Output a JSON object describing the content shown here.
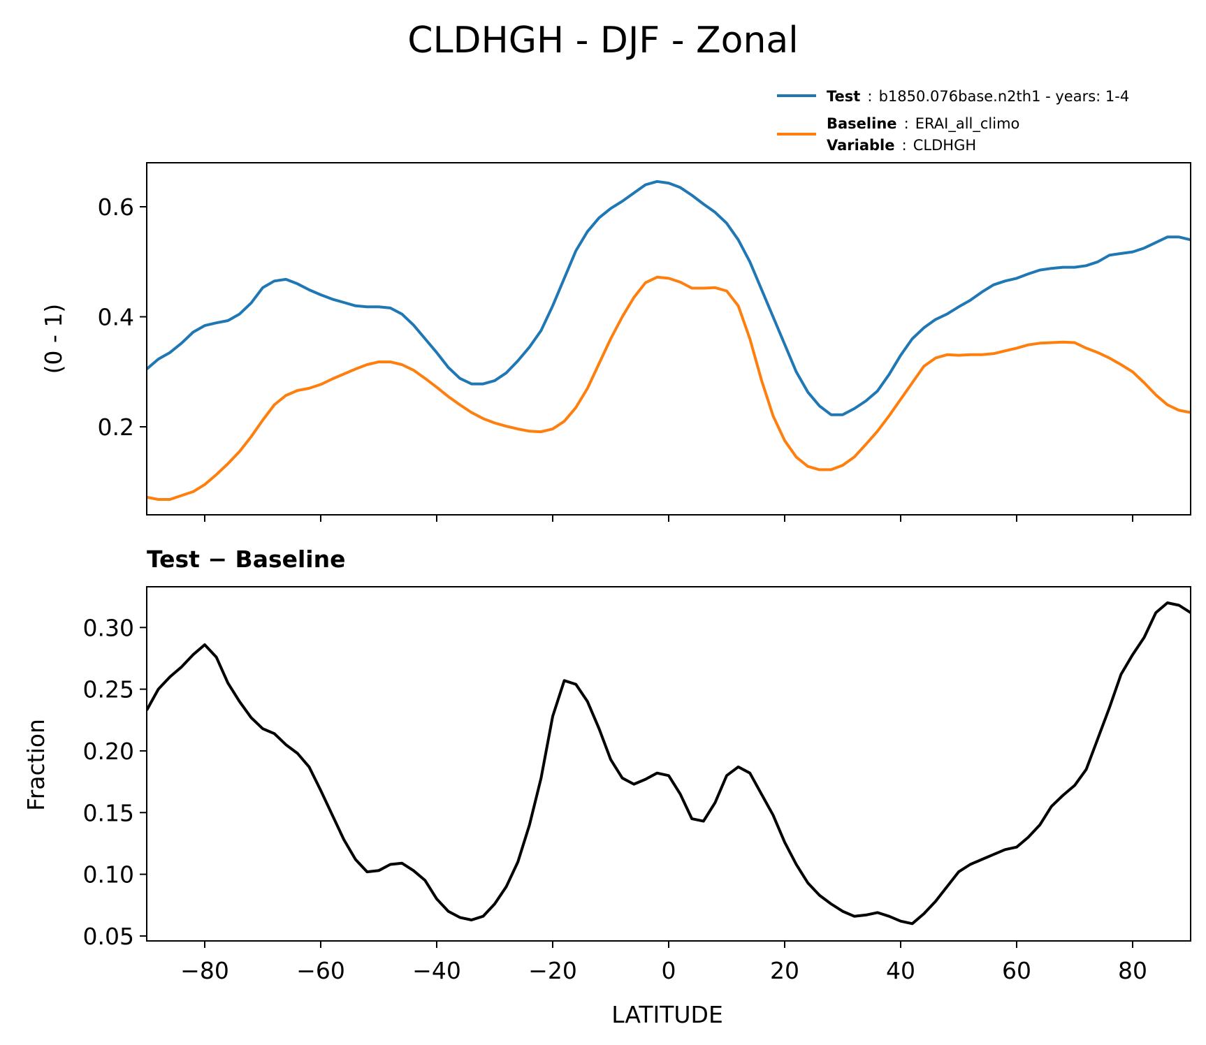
{
  "title": "CLDHGH - DJF - Zonal",
  "legend": [
    {
      "key": "Test",
      "sep": ":",
      "value": "b1850.076base.n2th1 - years: 1-4",
      "color": "#1f77b4"
    },
    {
      "key": "Baseline",
      "sep": ":",
      "value": "ERAI_all_climo",
      "color": "#ff7f0e"
    },
    {
      "key": "Variable",
      "sep": ":",
      "value": "CLDHGH"
    }
  ],
  "top_panel": {
    "ylabel": "(0 - 1)",
    "xlim": [
      -90,
      90
    ],
    "ylim": [
      0.04,
      0.68
    ],
    "yticks": [
      0.2,
      0.4,
      0.6
    ],
    "ytick_labels": [
      "0.2",
      "0.4",
      "0.6"
    ],
    "xticks": [
      -80,
      -60,
      -40,
      -20,
      0,
      20,
      40,
      60,
      80
    ]
  },
  "bottom_panel": {
    "title": "Test − Baseline",
    "ylabel": "Fraction",
    "xlabel": "LATITUDE",
    "xlim": [
      -90,
      90
    ],
    "ylim": [
      0.046,
      0.333
    ],
    "yticks": [
      0.05,
      0.1,
      0.15,
      0.2,
      0.25,
      0.3
    ],
    "ytick_labels": [
      "0.05",
      "0.10",
      "0.15",
      "0.20",
      "0.25",
      "0.30"
    ],
    "xticks": [
      -80,
      -60,
      -40,
      -20,
      0,
      20,
      40,
      60,
      80
    ],
    "xtick_labels": [
      "−80",
      "−60",
      "−40",
      "−20",
      "0",
      "20",
      "40",
      "60",
      "80"
    ]
  },
  "chart_data": [
    {
      "type": "line",
      "x": [
        -90,
        -88,
        -86,
        -84,
        -82,
        -80,
        -78,
        -76,
        -74,
        -72,
        -70,
        -68,
        -66,
        -64,
        -62,
        -60,
        -58,
        -56,
        -54,
        -52,
        -50,
        -48,
        -46,
        -44,
        -42,
        -40,
        -38,
        -36,
        -34,
        -32,
        -30,
        -28,
        -26,
        -24,
        -22,
        -20,
        -18,
        -16,
        -14,
        -12,
        -10,
        -8,
        -6,
        -4,
        -2,
        0,
        2,
        4,
        6,
        8,
        10,
        12,
        14,
        16,
        18,
        20,
        22,
        24,
        26,
        28,
        30,
        32,
        34,
        36,
        38,
        40,
        42,
        44,
        46,
        48,
        50,
        52,
        54,
        56,
        58,
        60,
        62,
        64,
        66,
        68,
        70,
        72,
        74,
        76,
        78,
        80,
        82,
        84,
        86,
        88,
        90
      ],
      "series": [
        {
          "name": "Test",
          "color": "#1f77b4",
          "values": [
            0.305,
            0.323,
            0.335,
            0.352,
            0.372,
            0.384,
            0.389,
            0.393,
            0.405,
            0.425,
            0.453,
            0.465,
            0.468,
            0.46,
            0.449,
            0.44,
            0.432,
            0.426,
            0.42,
            0.418,
            0.418,
            0.416,
            0.405,
            0.385,
            0.36,
            0.335,
            0.308,
            0.288,
            0.278,
            0.278,
            0.284,
            0.298,
            0.32,
            0.345,
            0.375,
            0.42,
            0.47,
            0.52,
            0.555,
            0.58,
            0.597,
            0.61,
            0.625,
            0.64,
            0.646,
            0.643,
            0.635,
            0.621,
            0.605,
            0.59,
            0.57,
            0.54,
            0.5,
            0.45,
            0.4,
            0.35,
            0.3,
            0.263,
            0.238,
            0.222,
            0.222,
            0.233,
            0.247,
            0.265,
            0.295,
            0.33,
            0.36,
            0.38,
            0.395,
            0.405,
            0.418,
            0.43,
            0.445,
            0.458,
            0.465,
            0.47,
            0.478,
            0.485,
            0.488,
            0.49,
            0.49,
            0.493,
            0.5,
            0.512,
            0.515,
            0.518,
            0.525,
            0.535,
            0.545,
            0.545,
            0.54
          ]
        },
        {
          "name": "Baseline",
          "color": "#ff7f0e",
          "values": [
            0.072,
            0.068,
            0.068,
            0.075,
            0.082,
            0.095,
            0.113,
            0.133,
            0.155,
            0.182,
            0.212,
            0.24,
            0.257,
            0.266,
            0.27,
            0.277,
            0.287,
            0.296,
            0.305,
            0.313,
            0.318,
            0.318,
            0.313,
            0.303,
            0.288,
            0.272,
            0.255,
            0.24,
            0.226,
            0.215,
            0.207,
            0.201,
            0.196,
            0.192,
            0.191,
            0.196,
            0.21,
            0.235,
            0.27,
            0.315,
            0.36,
            0.4,
            0.435,
            0.462,
            0.472,
            0.47,
            0.463,
            0.452,
            0.452,
            0.453,
            0.447,
            0.42,
            0.36,
            0.285,
            0.22,
            0.175,
            0.145,
            0.128,
            0.122,
            0.122,
            0.13,
            0.145,
            0.168,
            0.192,
            0.22,
            0.25,
            0.28,
            0.31,
            0.325,
            0.331,
            0.33,
            0.331,
            0.331,
            0.333,
            0.338,
            0.343,
            0.349,
            0.352,
            0.353,
            0.354,
            0.353,
            0.343,
            0.335,
            0.325,
            0.313,
            0.3,
            0.28,
            0.258,
            0.24,
            0.23,
            0.226
          ]
        }
      ],
      "ylabel": "(0 - 1)",
      "xlim": [
        -90,
        90
      ],
      "ylim": [
        0.04,
        0.68
      ]
    },
    {
      "type": "line",
      "title": "Test − Baseline",
      "x": [
        -90,
        -88,
        -86,
        -84,
        -82,
        -80,
        -78,
        -76,
        -74,
        -72,
        -70,
        -68,
        -66,
        -64,
        -62,
        -60,
        -58,
        -56,
        -54,
        -52,
        -50,
        -48,
        -46,
        -44,
        -42,
        -40,
        -38,
        -36,
        -34,
        -32,
        -30,
        -28,
        -26,
        -24,
        -22,
        -20,
        -18,
        -16,
        -14,
        -12,
        -10,
        -8,
        -6,
        -4,
        -2,
        0,
        2,
        4,
        6,
        8,
        10,
        12,
        14,
        16,
        18,
        20,
        22,
        24,
        26,
        28,
        30,
        32,
        34,
        36,
        38,
        40,
        42,
        44,
        46,
        48,
        50,
        52,
        54,
        56,
        58,
        60,
        62,
        64,
        66,
        68,
        70,
        72,
        74,
        76,
        78,
        80,
        82,
        84,
        86,
        88,
        90
      ],
      "series": [
        {
          "color": "#000000",
          "values": [
            0.233,
            0.25,
            0.26,
            0.268,
            0.278,
            0.286,
            0.276,
            0.255,
            0.24,
            0.227,
            0.218,
            0.214,
            0.205,
            0.198,
            0.187,
            0.168,
            0.148,
            0.128,
            0.112,
            0.102,
            0.103,
            0.108,
            0.109,
            0.103,
            0.095,
            0.08,
            0.07,
            0.065,
            0.063,
            0.066,
            0.076,
            0.09,
            0.11,
            0.14,
            0.178,
            0.228,
            0.257,
            0.254,
            0.24,
            0.218,
            0.193,
            0.178,
            0.173,
            0.177,
            0.182,
            0.18,
            0.165,
            0.145,
            0.143,
            0.158,
            0.18,
            0.187,
            0.182,
            0.165,
            0.148,
            0.126,
            0.108,
            0.093,
            0.083,
            0.076,
            0.07,
            0.066,
            0.067,
            0.069,
            0.066,
            0.062,
            0.06,
            0.068,
            0.078,
            0.09,
            0.102,
            0.108,
            0.112,
            0.116,
            0.12,
            0.122,
            0.13,
            0.14,
            0.155,
            0.164,
            0.172,
            0.185,
            0.21,
            0.235,
            0.262,
            0.278,
            0.292,
            0.312,
            0.32,
            0.318,
            0.312
          ]
        }
      ],
      "ylabel": "Fraction",
      "xlabel": "LATITUDE",
      "xlim": [
        -90,
        90
      ],
      "ylim": [
        0.046,
        0.333
      ]
    }
  ]
}
